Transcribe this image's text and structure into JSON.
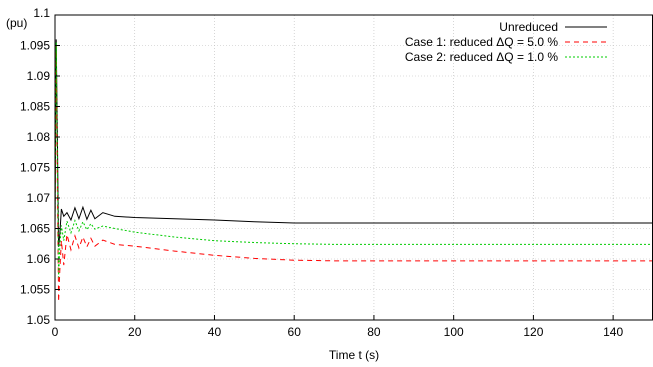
{
  "chart_data": {
    "type": "line",
    "xlabel": "Time t (s)",
    "ylabel": "(pu)",
    "xlim": [
      0,
      150
    ],
    "ylim": [
      1.05,
      1.1
    ],
    "xticks": [
      "0",
      "20",
      "40",
      "60",
      "80",
      "100",
      "120",
      "140"
    ],
    "yticks": [
      "1.05",
      "1.055",
      "1.06",
      "1.065",
      "1.07",
      "1.075",
      "1.08",
      "1.085",
      "1.09",
      "1.095",
      "1.1"
    ],
    "grid": true,
    "legend_position": "top-right",
    "series": [
      {
        "name": "Unreduced",
        "color": "#000000",
        "dash": "solid",
        "x": [
          0,
          0.3,
          0.6,
          0.9,
          1.2,
          1.6,
          2.2,
          3,
          4,
          5,
          6,
          7,
          8,
          9,
          10,
          12,
          15,
          20,
          30,
          40,
          50,
          60,
          70,
          80,
          100,
          120,
          150
        ],
        "y": [
          1.065,
          1.096,
          1.08,
          1.062,
          1.064,
          1.0682,
          1.067,
          1.0676,
          1.0664,
          1.0684,
          1.0666,
          1.0685,
          1.0665,
          1.068,
          1.0666,
          1.0676,
          1.067,
          1.0668,
          1.0666,
          1.0664,
          1.0661,
          1.0659,
          1.0659,
          1.0659,
          1.0659,
          1.0659,
          1.0659
        ]
      },
      {
        "name": "Case 1: reduced ΔQ = 5.0 %",
        "color": "#ff0000",
        "dash": "dashed",
        "x": [
          0,
          0.3,
          0.6,
          0.9,
          1.2,
          1.6,
          2.2,
          3,
          4,
          5,
          6,
          7,
          8,
          9,
          10,
          12,
          15,
          20,
          30,
          40,
          50,
          60,
          70,
          80,
          100,
          120,
          150
        ],
        "y": [
          1.065,
          1.095,
          1.072,
          1.053,
          1.058,
          1.063,
          1.059,
          1.064,
          1.0615,
          1.0638,
          1.0618,
          1.0636,
          1.062,
          1.0634,
          1.0621,
          1.0631,
          1.0624,
          1.0621,
          1.0613,
          1.0606,
          1.0601,
          1.0598,
          1.0597,
          1.0597,
          1.0597,
          1.0597,
          1.0597
        ]
      },
      {
        "name": "Case 2: reduced ΔQ = 1.0 %",
        "color": "#00cc00",
        "dash": "dotted",
        "x": [
          0,
          0.3,
          0.6,
          0.9,
          1.2,
          1.6,
          2.2,
          3,
          4,
          5,
          6,
          7,
          8,
          9,
          10,
          12,
          15,
          20,
          30,
          40,
          50,
          60,
          70,
          80,
          100,
          120,
          150
        ],
        "y": [
          1.065,
          1.0955,
          1.076,
          1.057,
          1.062,
          1.0655,
          1.063,
          1.0662,
          1.0643,
          1.0663,
          1.0646,
          1.0661,
          1.0648,
          1.0658,
          1.0649,
          1.0654,
          1.065,
          1.0644,
          1.0636,
          1.063,
          1.0627,
          1.0625,
          1.0624,
          1.0624,
          1.0624,
          1.0624,
          1.0624
        ]
      }
    ]
  }
}
